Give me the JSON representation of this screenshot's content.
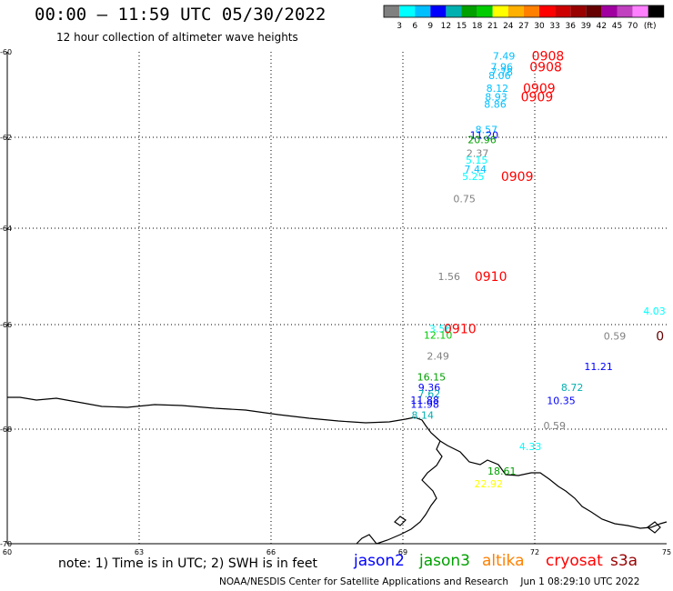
{
  "header": {
    "title": "00:00 – 11:59 UTC 05/30/2022",
    "subtitle": "12 hour collection of altimeter wave heights"
  },
  "colorbar": {
    "colors": [
      "#808080",
      "#00ffff",
      "#00bfff",
      "#0000ff",
      "#00b0b0",
      "#00a000",
      "#00cc00",
      "#ffff00",
      "#ffb000",
      "#ff8000",
      "#ff0000",
      "#cc0000",
      "#990000",
      "#660000",
      "#a000a0",
      "#c040c0",
      "#ff80ff",
      "#000000"
    ],
    "ticks": [
      "3",
      "6",
      "9",
      "12",
      "15",
      "18",
      "21",
      "24",
      "27",
      "30",
      "33",
      "36",
      "39",
      "42",
      "45",
      "70"
    ],
    "unit": "(ft)"
  },
  "chart_data": {
    "type": "scatter",
    "xlabel": "",
    "ylabel": "",
    "xlim": [
      60,
      75
    ],
    "ylim": [
      -70,
      -60
    ],
    "x_ticks": [
      "60",
      "63",
      "66",
      "69",
      "72",
      "75"
    ],
    "y_ticks": [
      "-60",
      "-62",
      "-64",
      "-66",
      "-68",
      "-70"
    ],
    "points": [
      {
        "text": "7.49",
        "lon": 71.3,
        "lat": -60.1,
        "color": "#00bfff"
      },
      {
        "text": "7.96",
        "lon": 71.25,
        "lat": -60.35,
        "color": "#00bfff"
      },
      {
        "text": "7.78",
        "lon": 71.25,
        "lat": -60.47,
        "color": "#00bfff"
      },
      {
        "text": "8.06",
        "lon": 71.2,
        "lat": -60.55,
        "color": "#00bfff"
      },
      {
        "text": "8.12",
        "lon": 71.15,
        "lat": -60.85,
        "color": "#00bfff"
      },
      {
        "text": "8.93",
        "lon": 71.12,
        "lat": -61.05,
        "color": "#00bfff"
      },
      {
        "text": "8.86",
        "lon": 71.1,
        "lat": -61.22,
        "color": "#00bfff"
      },
      {
        "text": "8.57",
        "lon": 70.9,
        "lat": -61.82,
        "color": "#00bfff"
      },
      {
        "text": "11.20",
        "lon": 70.85,
        "lat": -61.95,
        "color": "#0000ff"
      },
      {
        "text": "20.96",
        "lon": 70.8,
        "lat": -62.05,
        "color": "#00a000"
      },
      {
        "text": "2.37",
        "lon": 70.7,
        "lat": -62.35,
        "color": "#808080"
      },
      {
        "text": "5.15",
        "lon": 70.68,
        "lat": -62.5,
        "color": "#00ffff"
      },
      {
        "text": "7.44",
        "lon": 70.65,
        "lat": -62.7,
        "color": "#00bfff"
      },
      {
        "text": "5.25",
        "lon": 70.6,
        "lat": -62.86,
        "color": "#00ffff"
      },
      {
        "text": "0.75",
        "lon": 70.4,
        "lat": -63.35,
        "color": "#808080"
      },
      {
        "text": "1.56",
        "lon": 70.05,
        "lat": -65.0,
        "color": "#808080"
      },
      {
        "text": "4.03",
        "lon": 74.72,
        "lat": -65.72,
        "color": "#00ffff"
      },
      {
        "text": "3.56",
        "lon": 69.85,
        "lat": -66.08,
        "color": "#00ffff"
      },
      {
        "text": "12.10",
        "lon": 69.8,
        "lat": -66.2,
        "color": "#00cc00"
      },
      {
        "text": "0.59",
        "lon": 73.82,
        "lat": -66.22,
        "color": "#808080"
      },
      {
        "text": "2.49",
        "lon": 69.8,
        "lat": -66.6,
        "color": "#808080"
      },
      {
        "text": "11.21",
        "lon": 73.45,
        "lat": -66.8,
        "color": "#0000ff"
      },
      {
        "text": "16.15",
        "lon": 69.65,
        "lat": -67.0,
        "color": "#00a000"
      },
      {
        "text": "8.72",
        "lon": 72.85,
        "lat": -67.2,
        "color": "#00b0b0"
      },
      {
        "text": "9.36",
        "lon": 69.6,
        "lat": -67.2,
        "color": "#0000ff"
      },
      {
        "text": "7.62",
        "lon": 69.6,
        "lat": -67.32,
        "color": "#00b0b0"
      },
      {
        "text": "10.35",
        "lon": 72.6,
        "lat": -67.45,
        "color": "#0000ff"
      },
      {
        "text": "11.88",
        "lon": 69.5,
        "lat": -67.44,
        "color": "#0000ff"
      },
      {
        "text": "11.98",
        "lon": 69.5,
        "lat": -67.52,
        "color": "#0000ff"
      },
      {
        "text": "8.14",
        "lon": 69.45,
        "lat": -67.73,
        "color": "#00b0b0"
      },
      {
        "text": "0.59",
        "lon": 72.45,
        "lat": -67.93,
        "color": "#808080"
      },
      {
        "text": "4.33",
        "lon": 71.9,
        "lat": -68.3,
        "color": "#00ffff"
      },
      {
        "text": "18.61",
        "lon": 71.25,
        "lat": -68.73,
        "color": "#00a000"
      },
      {
        "text": "22.92",
        "lon": 70.95,
        "lat": -68.95,
        "color": "#ffff00"
      }
    ],
    "time_labels": [
      {
        "text": "0908",
        "lon": 72.3,
        "lat": -60.1,
        "color": "#ff0000"
      },
      {
        "text": "0908",
        "lon": 72.25,
        "lat": -60.35,
        "color": "#ff0000"
      },
      {
        "text": "0909",
        "lon": 72.1,
        "lat": -60.85,
        "color": "#ff0000"
      },
      {
        "text": "0909",
        "lon": 72.05,
        "lat": -61.05,
        "color": "#ff0000"
      },
      {
        "text": "0909",
        "lon": 71.6,
        "lat": -62.86,
        "color": "#ff0000"
      },
      {
        "text": "0910",
        "lon": 71.0,
        "lat": -65.0,
        "color": "#ff0000"
      },
      {
        "text": "0910",
        "lon": 70.3,
        "lat": -66.08,
        "color": "#ff0000"
      },
      {
        "text": "0",
        "lon": 74.85,
        "lat": -66.22,
        "color": "#660000"
      }
    ]
  },
  "note": {
    "text": "note:  1) Time is in UTC;  2) SWH is in feet"
  },
  "legend": [
    {
      "label": "jason2",
      "color": "#0000ff"
    },
    {
      "label": "jason3",
      "color": "#00a000"
    },
    {
      "label": "altika",
      "color": "#ff8000"
    },
    {
      "label": "cryosat",
      "color": "#ff0000"
    },
    {
      "label": "s3a",
      "color": "#990000"
    }
  ],
  "footer": {
    "credit": "NOAA/NESDIS Center for Satellite Applications and Research",
    "timestamp": "Jun  1 08:29:10 UTC 2022"
  }
}
